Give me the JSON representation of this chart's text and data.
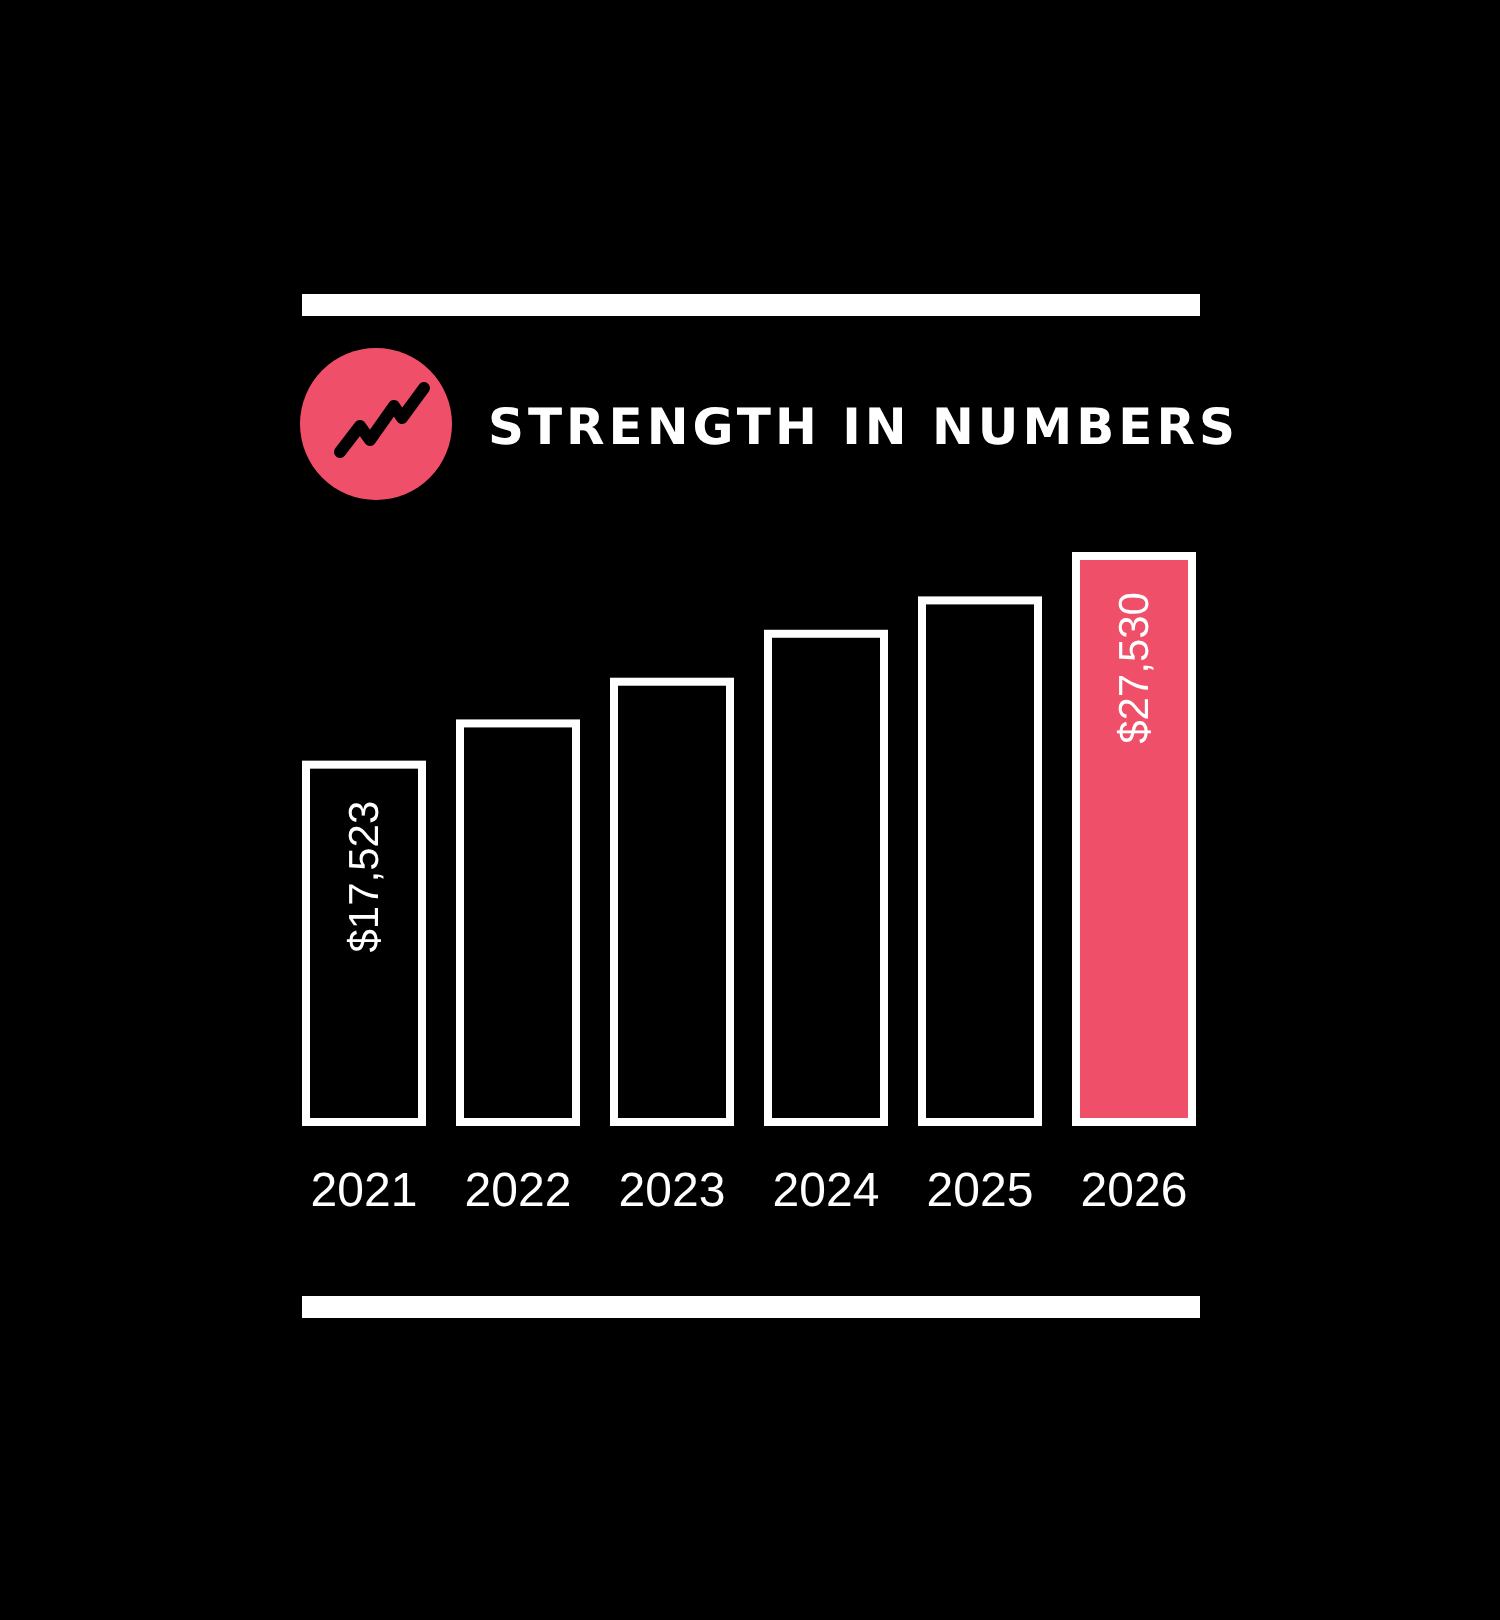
{
  "chart_data": {
    "type": "bar",
    "title": "STRENGTH IN NUMBERS",
    "categories": [
      "2021",
      "2022",
      "2023",
      "2024",
      "2025",
      "2026"
    ],
    "values": [
      17523,
      19500,
      21500,
      23800,
      25400,
      27530
    ],
    "colors": [
      "#000000",
      "#000000",
      "#000000",
      "#000000",
      "#000000",
      "#ef4f68"
    ],
    "value_labels": [
      "$17,523",
      null,
      null,
      null,
      null,
      "$27,530"
    ]
  }
}
